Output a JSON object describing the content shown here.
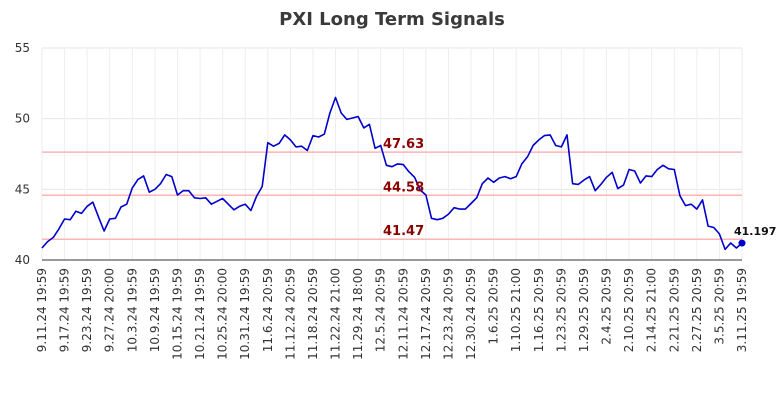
{
  "chart_data": {
    "type": "line",
    "title": "PXI Long Term Signals",
    "ylim": [
      40,
      55
    ],
    "yticks": [
      40,
      45,
      50,
      55
    ],
    "xticks": [
      "9.11.24 19:59",
      "9.17.24 19:59",
      "9.23.24 19:59",
      "9.27.24 20:00",
      "10.3.24 19:59",
      "10.9.24 19:59",
      "10.15.24 19:59",
      "10.21.24 19:59",
      "10.25.24 20:00",
      "10.31.24 19:59",
      "11.6.24 20:59",
      "11.12.24 20:59",
      "11.18.24 20:59",
      "11.22.24 21:00",
      "11.29.24 18:00",
      "12.5.24 20:59",
      "12.11.24 20:59",
      "12.17.24 20:59",
      "12.23.24 20:59",
      "12.30.24 20:59",
      "1.6.25 20:59",
      "1.10.25 21:00",
      "1.16.25 20:59",
      "1.23.25 20:59",
      "1.29.25 20:59",
      "2.4.25 20:59",
      "2.10.25 20:59",
      "2.14.25 21:00",
      "2.21.25 20:59",
      "2.27.25 20:59",
      "3.5.25 20:59",
      "3.11.25 19:59"
    ],
    "grid": true,
    "series": [
      {
        "color": "#0000cc",
        "values": [
          40.85,
          41.3,
          41.6,
          42.2,
          42.9,
          42.85,
          43.45,
          43.3,
          43.8,
          44.1,
          43.05,
          42.05,
          42.9,
          42.95,
          43.75,
          43.95,
          45.1,
          45.7,
          45.95,
          44.8,
          45.0,
          45.4,
          46.05,
          45.9,
          44.6,
          44.9,
          44.9,
          44.4,
          44.35,
          44.4,
          43.95,
          44.15,
          44.35,
          43.95,
          43.55,
          43.8,
          43.95,
          43.5,
          44.5,
          45.2,
          48.3,
          48.05,
          48.25,
          48.85,
          48.5,
          48.0,
          48.05,
          47.75,
          48.8,
          48.7,
          48.9,
          50.4,
          51.5,
          50.4,
          49.95,
          50.05,
          50.15,
          49.35,
          49.6,
          47.9,
          48.1,
          46.7,
          46.6,
          46.8,
          46.75,
          46.25,
          45.85,
          44.95,
          44.6,
          42.95,
          42.85,
          42.95,
          43.25,
          43.7,
          43.6,
          43.6,
          44.0,
          44.4,
          45.4,
          45.8,
          45.5,
          45.8,
          45.9,
          45.75,
          45.9,
          46.8,
          47.3,
          48.1,
          48.5,
          48.8,
          48.85,
          48.1,
          48.0,
          48.85,
          45.4,
          45.35,
          45.65,
          45.9,
          44.9,
          45.35,
          45.85,
          46.2,
          45.05,
          45.3,
          46.4,
          46.3,
          45.45,
          45.95,
          45.9,
          46.4,
          46.7,
          46.45,
          46.4,
          44.55,
          43.85,
          43.95,
          43.6,
          44.25,
          42.4,
          42.3,
          41.85,
          40.75,
          41.2,
          40.85,
          41.197
        ]
      }
    ],
    "levels": [
      {
        "value": 47.63,
        "label": "47.63",
        "color": "#ffb3b3"
      },
      {
        "value": 44.58,
        "label": "44.58",
        "color": "#ffb3b3"
      },
      {
        "value": 41.47,
        "label": "41.47",
        "color": "#ffb3b3"
      }
    ],
    "last_value_label": "41.197"
  }
}
